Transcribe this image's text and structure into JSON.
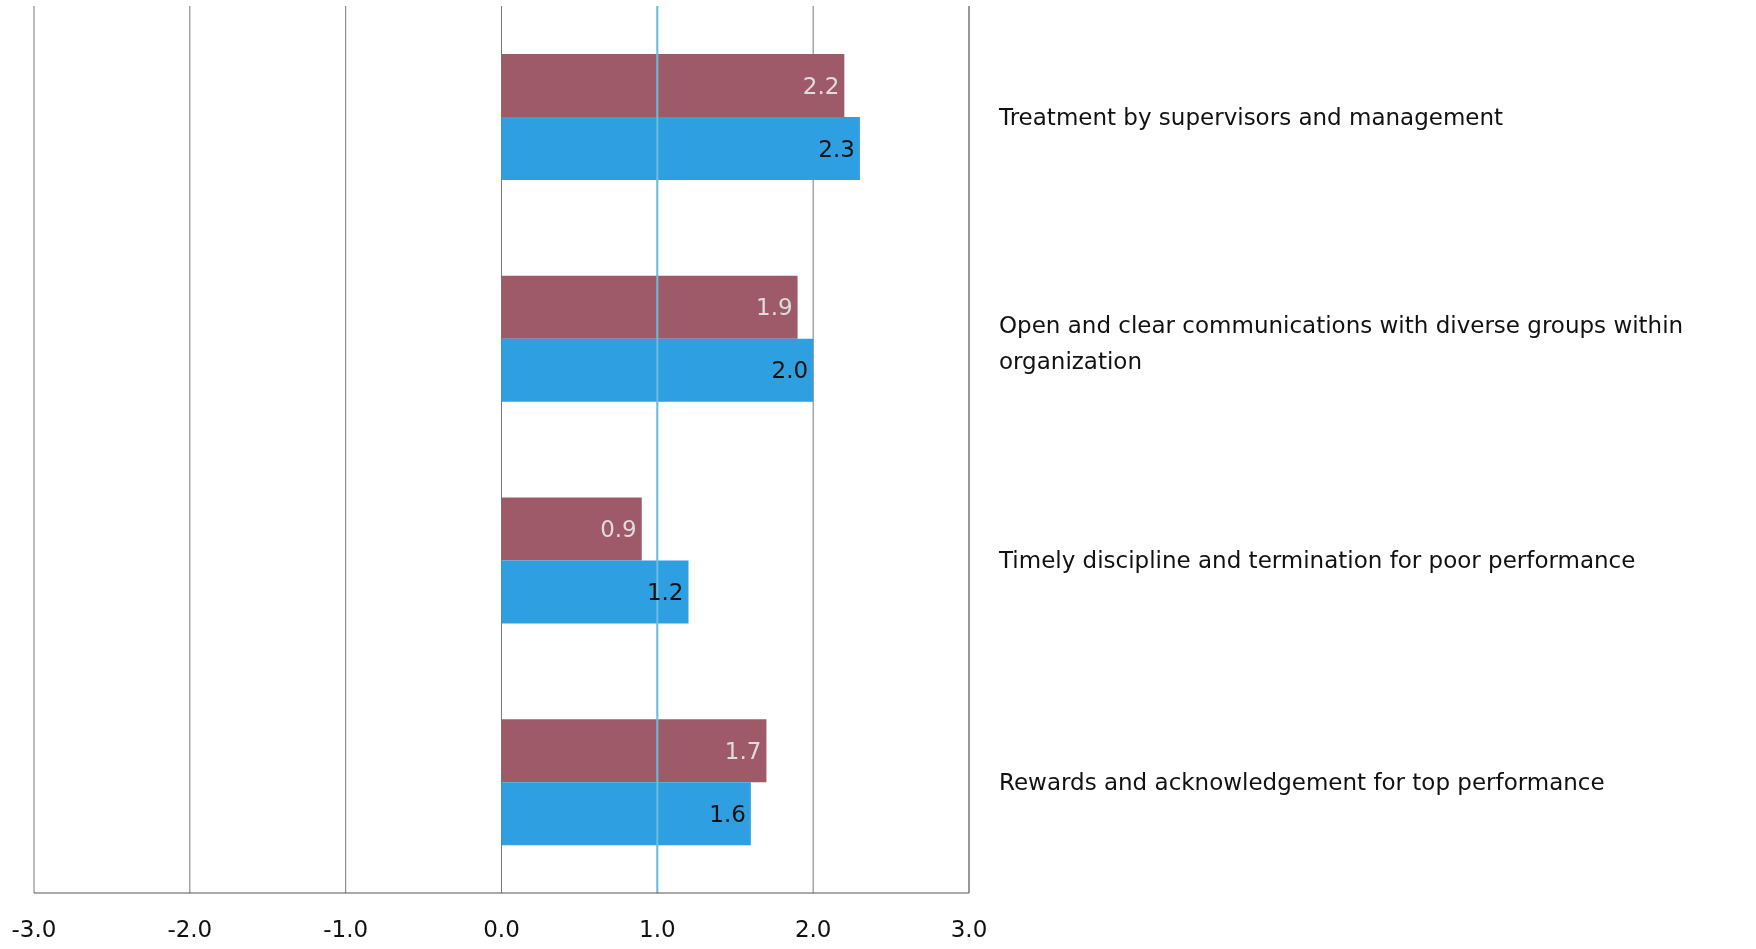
{
  "chart_data": {
    "type": "bar",
    "orientation": "horizontal",
    "categories": [
      "Treatment by supervisors and management",
      "Open and clear communications with diverse groups within organization",
      "Timely discipline and termination for poor performance",
      "Rewards and acknowledgement for top performance"
    ],
    "series": [
      {
        "color": "#9e5a68",
        "values": [
          2.2,
          1.9,
          0.9,
          1.7
        ],
        "value_labels": [
          "2.2",
          "1.9",
          "0.9",
          "1.7"
        ]
      },
      {
        "color": "#2e9fe0",
        "values": [
          2.3,
          2.0,
          1.2,
          1.6
        ],
        "value_labels": [
          "2.3",
          "2.0",
          "1.2",
          "1.6"
        ]
      }
    ],
    "xlim": [
      -3,
      3
    ],
    "xticks": [
      {
        "value": -3,
        "label": "-3.0"
      },
      {
        "value": -2,
        "label": "-2.0"
      },
      {
        "value": -1,
        "label": "-1.0"
      },
      {
        "value": 0,
        "label": "0.0"
      },
      {
        "value": 1,
        "label": "1.0"
      },
      {
        "value": 2,
        "label": "2.0"
      },
      {
        "value": 3,
        "label": "3.0"
      }
    ],
    "ref_lines": [
      {
        "axis": "x",
        "value": 1,
        "color": "#6bbde0"
      }
    ],
    "grid": "x"
  }
}
